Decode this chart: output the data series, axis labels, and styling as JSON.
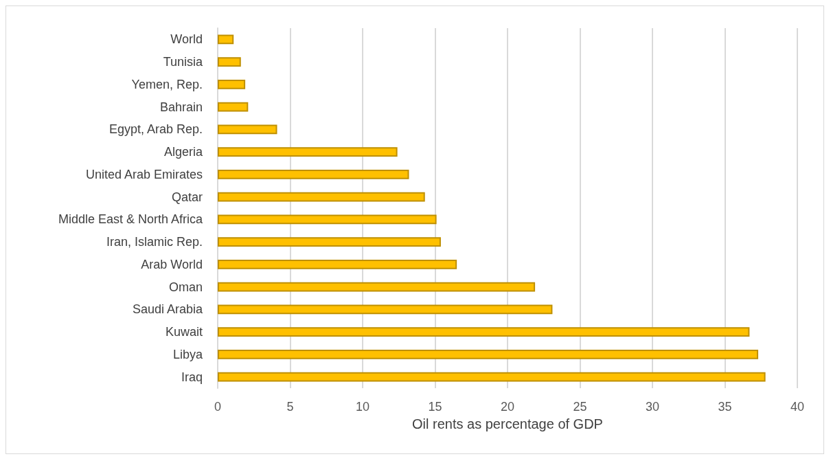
{
  "chart_data": {
    "type": "bar",
    "orientation": "horizontal",
    "xlabel": "Oil rents as percentage of GDP",
    "categories": [
      "World",
      "Tunisia",
      "Yemen, Rep.",
      "Bahrain",
      "Egypt, Arab Rep.",
      "Algeria",
      "United Arab Emirates",
      "Qatar",
      "Middle East & North Africa",
      "Iran, Islamic Rep.",
      "Arab World",
      "Oman",
      "Saudi Arabia",
      "Kuwait",
      "Libya",
      "Iraq"
    ],
    "values": [
      1.1,
      1.6,
      1.9,
      2.1,
      4.1,
      12.4,
      13.2,
      14.3,
      15.1,
      15.4,
      16.5,
      21.9,
      23.1,
      36.7,
      37.3,
      37.8
    ],
    "color": "#ffc000",
    "xlim": [
      0,
      40
    ],
    "xticks": [
      0,
      5,
      10,
      15,
      20,
      25,
      30,
      35,
      40
    ],
    "grid": "x"
  }
}
